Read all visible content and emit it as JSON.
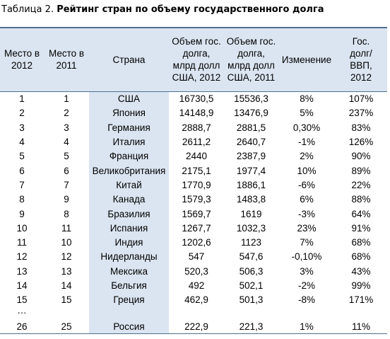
{
  "title": {
    "prefix": "Таблица 2.",
    "main": "Рейтинг стран по объему государственного долга"
  },
  "table": {
    "header": [
      [
        "Место в",
        "2012"
      ],
      [
        "Место в",
        "2011"
      ],
      [
        "Страна"
      ],
      [
        "Объем гос.",
        "долга,",
        "млрд долл",
        "США, 2012"
      ],
      [
        "Объем гос.",
        "долга,",
        "млрд долл",
        "США, 2011"
      ],
      [
        "Изменение"
      ],
      [
        "Гос.",
        "долг/",
        "ВВП,",
        "2012"
      ]
    ],
    "rows": [
      [
        "1",
        "1",
        "США",
        "16730,5",
        "15536,3",
        "8%",
        "107%"
      ],
      [
        "2",
        "2",
        "Япония",
        "14148,9",
        "13476,9",
        "5%",
        "237%"
      ],
      [
        "3",
        "3",
        "Германия",
        "2888,7",
        "2881,5",
        "0,30%",
        "83%"
      ],
      [
        "4",
        "4",
        "Италия",
        "2611,2",
        "2640,7",
        "-1%",
        "126%"
      ],
      [
        "5",
        "5",
        "Франция",
        "2440",
        "2387,9",
        "2%",
        "90%"
      ],
      [
        "6",
        "6",
        "Великобритания",
        "2175,1",
        "1977,4",
        "10%",
        "89%"
      ],
      [
        "7",
        "7",
        "Китай",
        "1770,9",
        "1886,1",
        "-6%",
        "22%"
      ],
      [
        "8",
        "9",
        "Канада",
        "1579,3",
        "1483,8",
        "6%",
        "88%"
      ],
      [
        "9",
        "8",
        "Бразилия",
        "1569,7",
        "1619",
        "-3%",
        "64%"
      ],
      [
        "10",
        "11",
        "Испания",
        "1267,7",
        "1032,3",
        "23%",
        "91%"
      ],
      [
        "11",
        "10",
        "Индия",
        "1202,6",
        "1123",
        "7%",
        "68%"
      ],
      [
        "12",
        "12",
        "Нидерланды",
        "547",
        "547,6",
        "-0,10%",
        "68%"
      ],
      [
        "13",
        "13",
        "Мексика",
        "520,3",
        "506,3",
        "3%",
        "43%"
      ],
      [
        "14",
        "14",
        "Бельгия",
        "492",
        "502,1",
        "-2%",
        "99%"
      ],
      [
        "15",
        "15",
        "Греция",
        "462,9",
        "501,3",
        "-8%",
        "171%"
      ]
    ],
    "gap": "…",
    "last_row": [
      "26",
      "25",
      "Россия",
      "222,9",
      "221,3",
      "1%",
      "11%"
    ]
  }
}
